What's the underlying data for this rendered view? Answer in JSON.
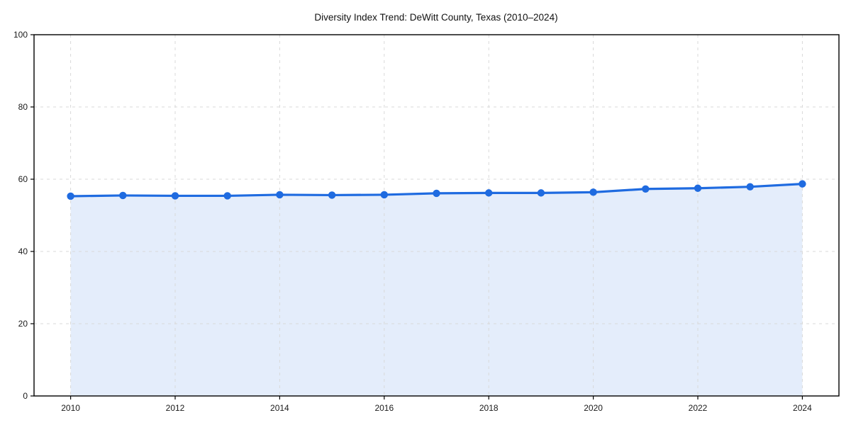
{
  "chart_data": {
    "type": "area",
    "title": "Diversity Index Trend: DeWitt County, Texas (2010–2024)",
    "x": [
      2010,
      2011,
      2012,
      2013,
      2014,
      2015,
      2016,
      2017,
      2018,
      2019,
      2020,
      2021,
      2022,
      2023,
      2024
    ],
    "values": [
      55.3,
      55.5,
      55.4,
      55.4,
      55.7,
      55.6,
      55.7,
      56.1,
      56.2,
      56.2,
      56.4,
      57.3,
      57.5,
      57.9,
      58.7
    ],
    "xlabel": "",
    "ylabel": "",
    "xticks": [
      2010,
      2012,
      2014,
      2016,
      2018,
      2020,
      2022,
      2024
    ],
    "yticks": [
      0,
      20,
      40,
      60,
      80,
      100
    ],
    "ylim": [
      0,
      100
    ],
    "grid": true,
    "legend": "none",
    "colors": {
      "line": "#1f6be0",
      "marker": "#1f6be0",
      "fill": "#e4edfb",
      "grid": "#d9d9d9",
      "axis": "#000000",
      "tick_text": "#1a1a1a",
      "background": "#ffffff"
    }
  }
}
